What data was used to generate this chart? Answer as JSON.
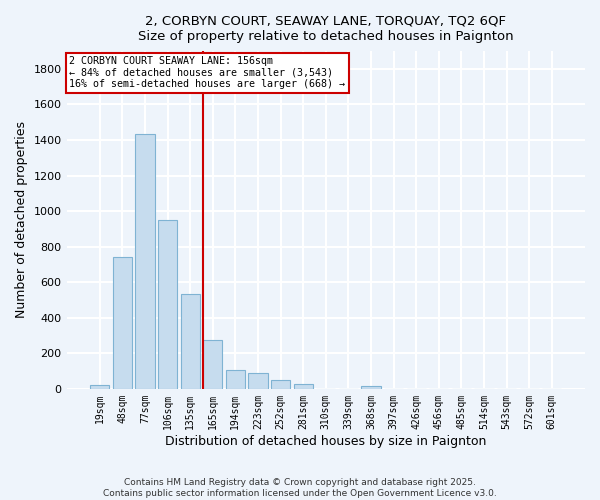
{
  "title_line1": "2, CORBYN COURT, SEAWAY LANE, TORQUAY, TQ2 6QF",
  "title_line2": "Size of property relative to detached houses in Paignton",
  "xlabel": "Distribution of detached houses by size in Paignton",
  "ylabel": "Number of detached properties",
  "bar_labels": [
    "19sqm",
    "48sqm",
    "77sqm",
    "106sqm",
    "135sqm",
    "165sqm",
    "194sqm",
    "223sqm",
    "252sqm",
    "281sqm",
    "310sqm",
    "339sqm",
    "368sqm",
    "397sqm",
    "426sqm",
    "456sqm",
    "485sqm",
    "514sqm",
    "543sqm",
    "572sqm",
    "601sqm"
  ],
  "bar_values": [
    22,
    740,
    1435,
    948,
    535,
    275,
    105,
    88,
    50,
    27,
    0,
    0,
    14,
    0,
    0,
    0,
    0,
    0,
    0,
    0,
    0
  ],
  "bar_color": "#c6dcee",
  "bar_edge_color": "#7fb3d3",
  "vline_color": "#cc0000",
  "vline_x_index": 4.57,
  "annotation_line1": "2 CORBYN COURT SEAWAY LANE: 156sqm",
  "annotation_line2": "← 84% of detached houses are smaller (3,543)",
  "annotation_line3": "16% of semi-detached houses are larger (668) →",
  "annotation_box_color": "white",
  "annotation_box_edge": "#cc0000",
  "ylim": [
    0,
    1900
  ],
  "yticks": [
    0,
    200,
    400,
    600,
    800,
    1000,
    1200,
    1400,
    1600,
    1800
  ],
  "footer_line1": "Contains HM Land Registry data © Crown copyright and database right 2025.",
  "footer_line2": "Contains public sector information licensed under the Open Government Licence v3.0.",
  "background_color": "#eef4fb",
  "grid_color": "white"
}
